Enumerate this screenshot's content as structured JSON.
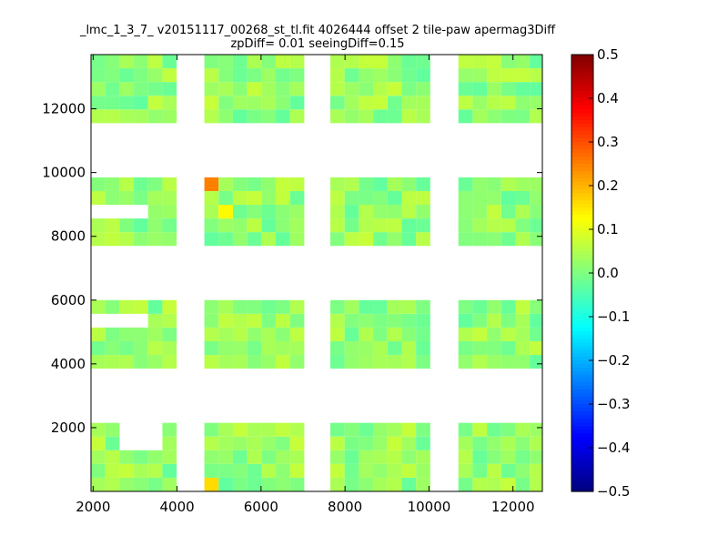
{
  "chart_data": {
    "type": "heatmap",
    "title_line1": "_lmc_1_3_7_ v20151117_00268_st_tl.fit 4026444 offset 2 tile-paw apermag3Diff",
    "title_line2": "zpDiff= 0.01 seeingDiff=0.15",
    "xlim": [
      1950,
      12700
    ],
    "ylim": [
      0,
      13700
    ],
    "x_ticks": [
      2000,
      4000,
      6000,
      8000,
      10000,
      12000
    ],
    "y_ticks": [
      2000,
      4000,
      6000,
      8000,
      10000,
      12000
    ],
    "x_tick_labels": [
      "2000",
      "4000",
      "6000",
      "8000",
      "10000",
      "12000"
    ],
    "y_tick_labels": [
      "2000",
      "4000",
      "6000",
      "8000",
      "10000",
      "12000"
    ],
    "colorbar": {
      "colormap": "jet",
      "vmin": -0.5,
      "vmax": 0.5,
      "ticks": [
        0.5,
        0.4,
        0.3,
        0.2,
        0.1,
        0.0,
        -0.1,
        -0.2,
        -0.3,
        -0.4,
        -0.5
      ],
      "tick_labels": [
        "0.5",
        "0.4",
        "0.3",
        "0.2",
        "0.1",
        "0.0",
        "−0.1",
        "−0.2",
        "−0.3",
        "−0.4",
        "−0.5"
      ]
    },
    "cell_size": [
      340,
      430
    ],
    "column_groups": [
      {
        "x0": 1950,
        "cols": 6
      },
      {
        "x0": 4650,
        "cols": 7
      },
      {
        "x0": 7650,
        "cols": 7
      },
      {
        "x0": 10700,
        "cols": 6
      }
    ],
    "row_groups": [
      {
        "y0": 0,
        "rows": 5
      },
      {
        "y0": 3850,
        "rows": 5
      },
      {
        "y0": 7700,
        "rows": 5
      },
      {
        "y0": 11550,
        "rows": 5
      }
    ],
    "missing_cells": [
      [
        2,
        3
      ],
      [
        3,
        3
      ],
      [
        4,
        3
      ],
      [
        2,
        4
      ],
      [
        3,
        4
      ],
      [
        4,
        4
      ],
      [
        0,
        8
      ],
      [
        1,
        8
      ],
      [
        2,
        8
      ],
      [
        3,
        8
      ],
      [
        0,
        12
      ],
      [
        1,
        12
      ],
      [
        2,
        12
      ],
      [
        3,
        12
      ]
    ],
    "special_cells": [
      {
        "col": 6,
        "row": 0,
        "value": 0.16
      },
      {
        "col": 6,
        "row": 14,
        "value": 0.25
      },
      {
        "col": 7,
        "row": 12,
        "value": 0.13
      },
      {
        "col": 0,
        "row": 13,
        "value": 0.06
      },
      {
        "col": 13,
        "row": 13,
        "value": 0.06
      },
      {
        "col": 18,
        "row": 13,
        "value": 0.06
      }
    ]
  }
}
